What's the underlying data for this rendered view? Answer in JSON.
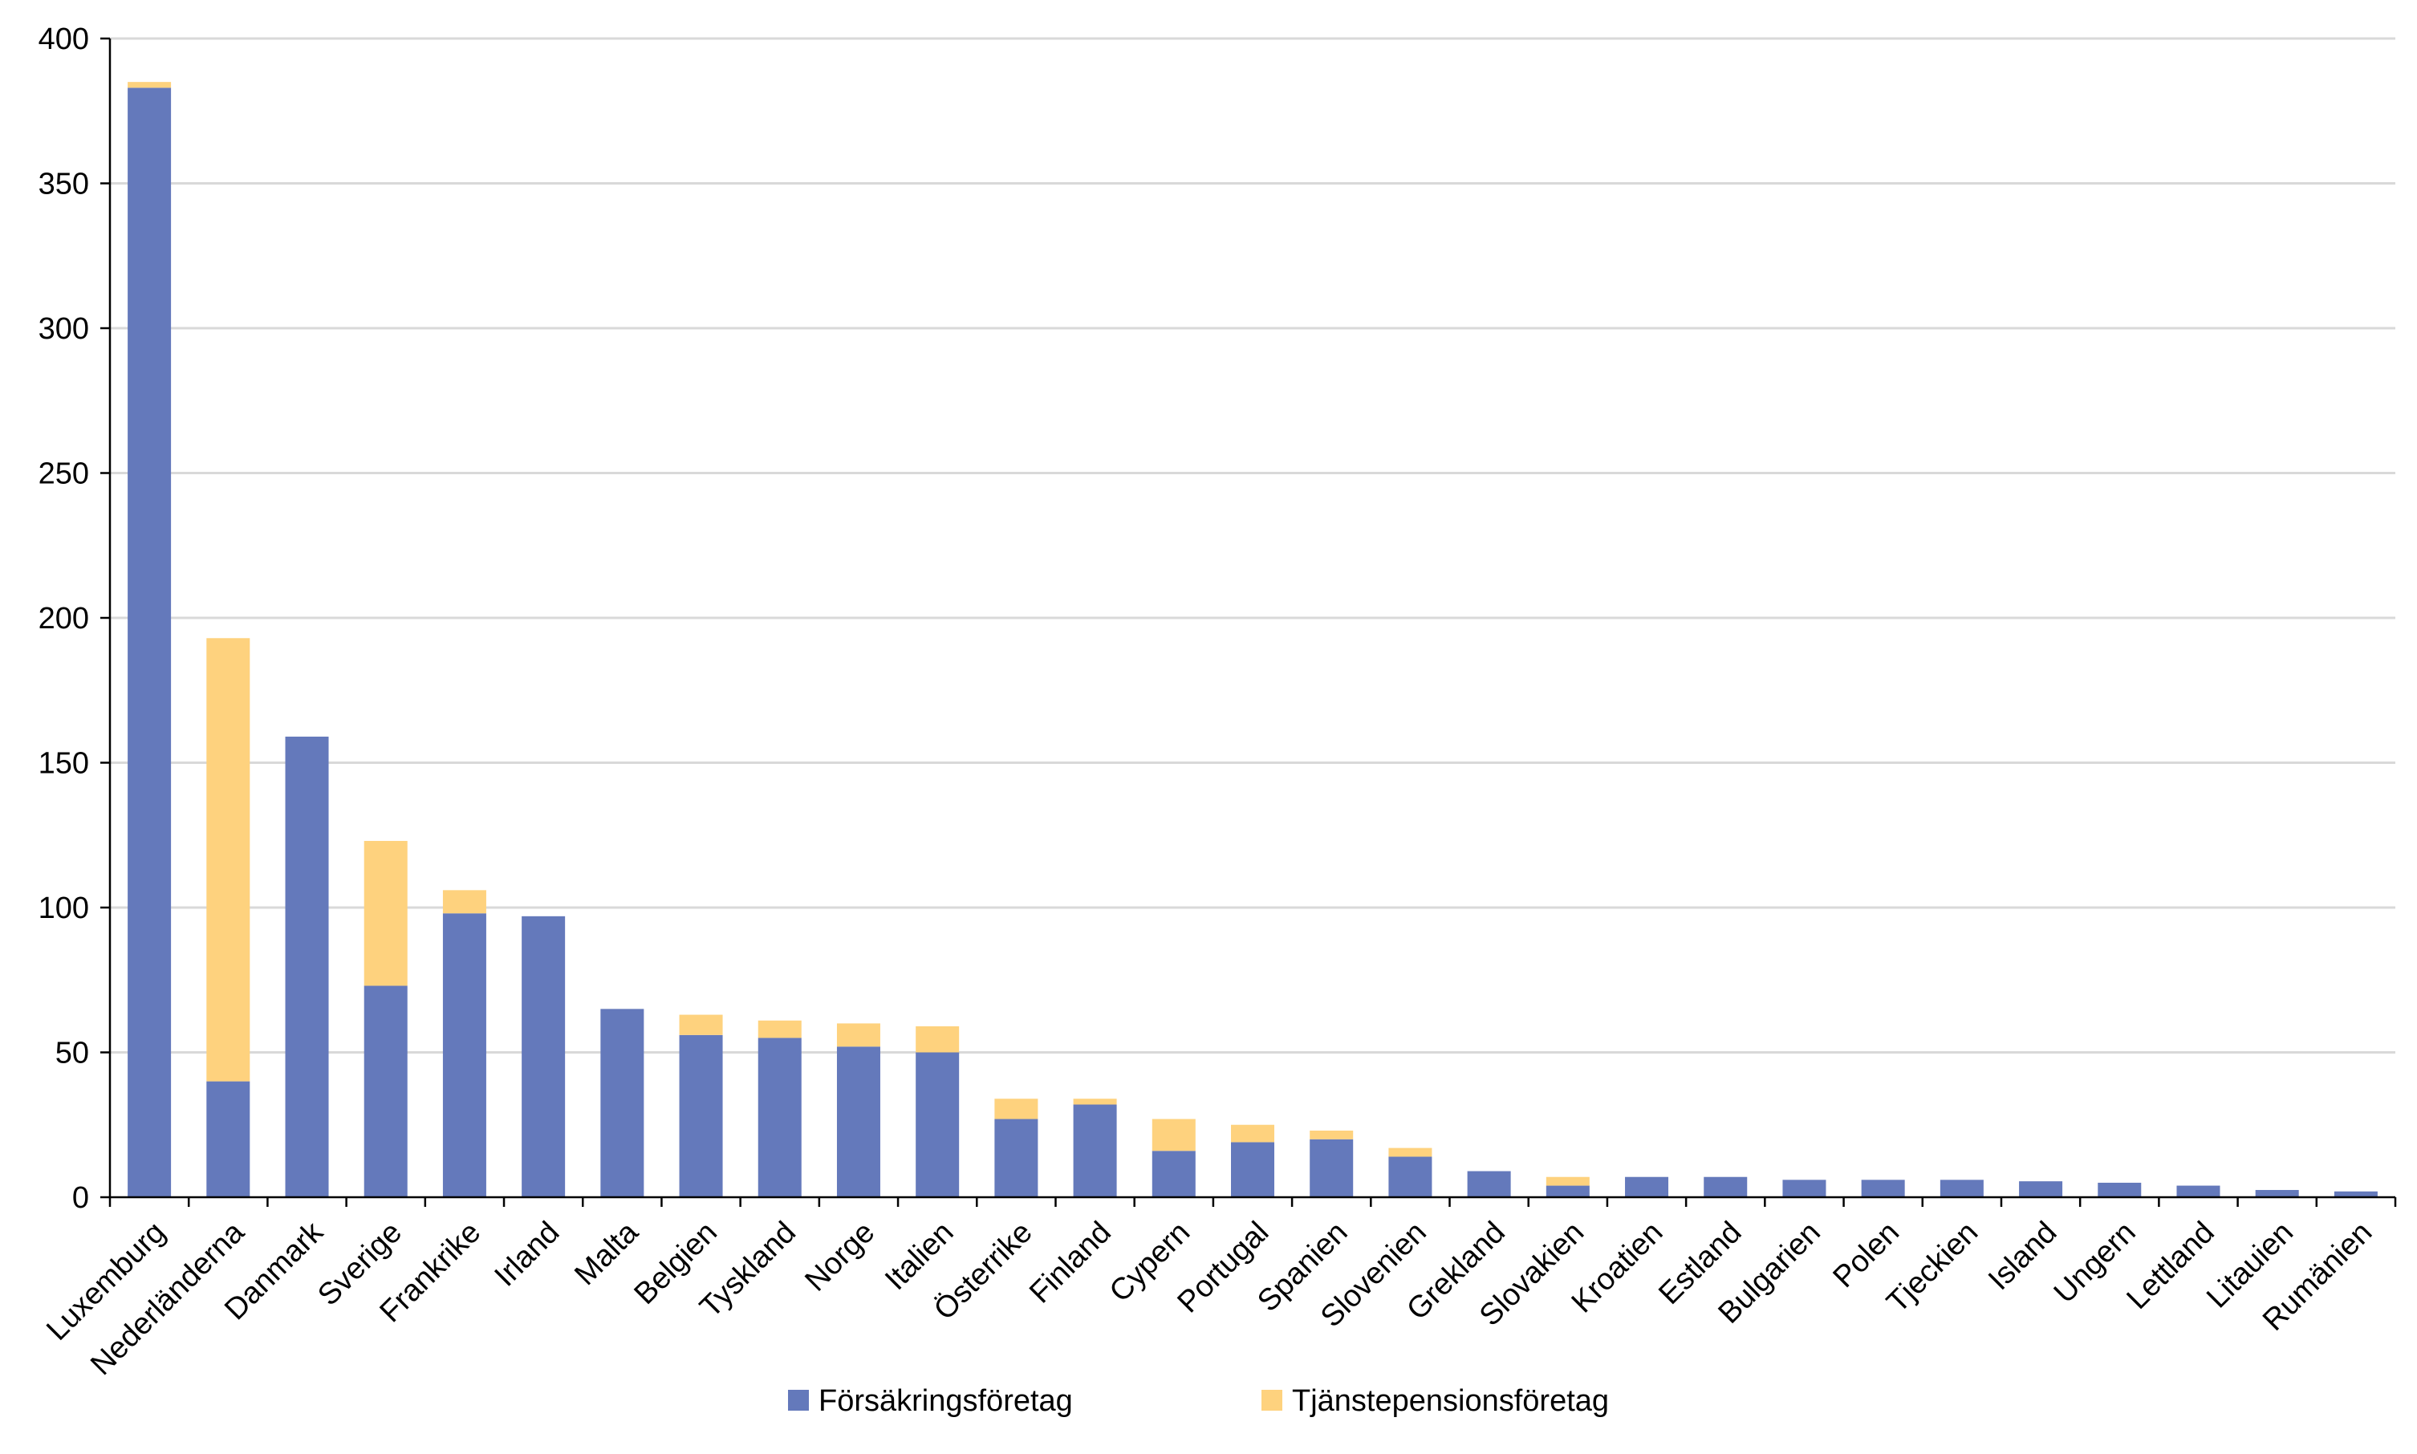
{
  "chart_data": {
    "type": "bar",
    "stacked": true,
    "title": "",
    "xlabel": "",
    "ylabel": "",
    "ylim": [
      0,
      400
    ],
    "yticks": [
      0,
      50,
      100,
      150,
      200,
      250,
      300,
      350,
      400
    ],
    "grid": true,
    "legend_position": "bottom-center",
    "categories": [
      "Luxemburg",
      "Nederländerna",
      "Danmark",
      "Sverige",
      "Frankrike",
      "Irland",
      "Malta",
      "Belgien",
      "Tyskland",
      "Norge",
      "Italien",
      "Österrike",
      "Finland",
      "Cypern",
      "Portugal",
      "Spanien",
      "Slovenien",
      "Grekland",
      "Slovakien",
      "Kroatien",
      "Estland",
      "Bulgarien",
      "Polen",
      "Tjeckien",
      "Island",
      "Ungern",
      "Lettland",
      "Litauien",
      "Rumänien"
    ],
    "series": [
      {
        "name": "Försäkringsföretag",
        "color": "#6479bb",
        "values": [
          383,
          40,
          159,
          73,
          98,
          97,
          65,
          56,
          55,
          52,
          50,
          27,
          32,
          16,
          19,
          20,
          14,
          9,
          4,
          7,
          7,
          6,
          6,
          6,
          5.5,
          5,
          4,
          2.5,
          2
        ]
      },
      {
        "name": "Tjänstepensionsföretag",
        "color": "#fed27e",
        "values": [
          2,
          153,
          0,
          50,
          8,
          0,
          0,
          7,
          6,
          8,
          9,
          7,
          2,
          11,
          6,
          3,
          3,
          0,
          3,
          0,
          0,
          0,
          0,
          0,
          0,
          0,
          0,
          0,
          0
        ]
      }
    ]
  }
}
